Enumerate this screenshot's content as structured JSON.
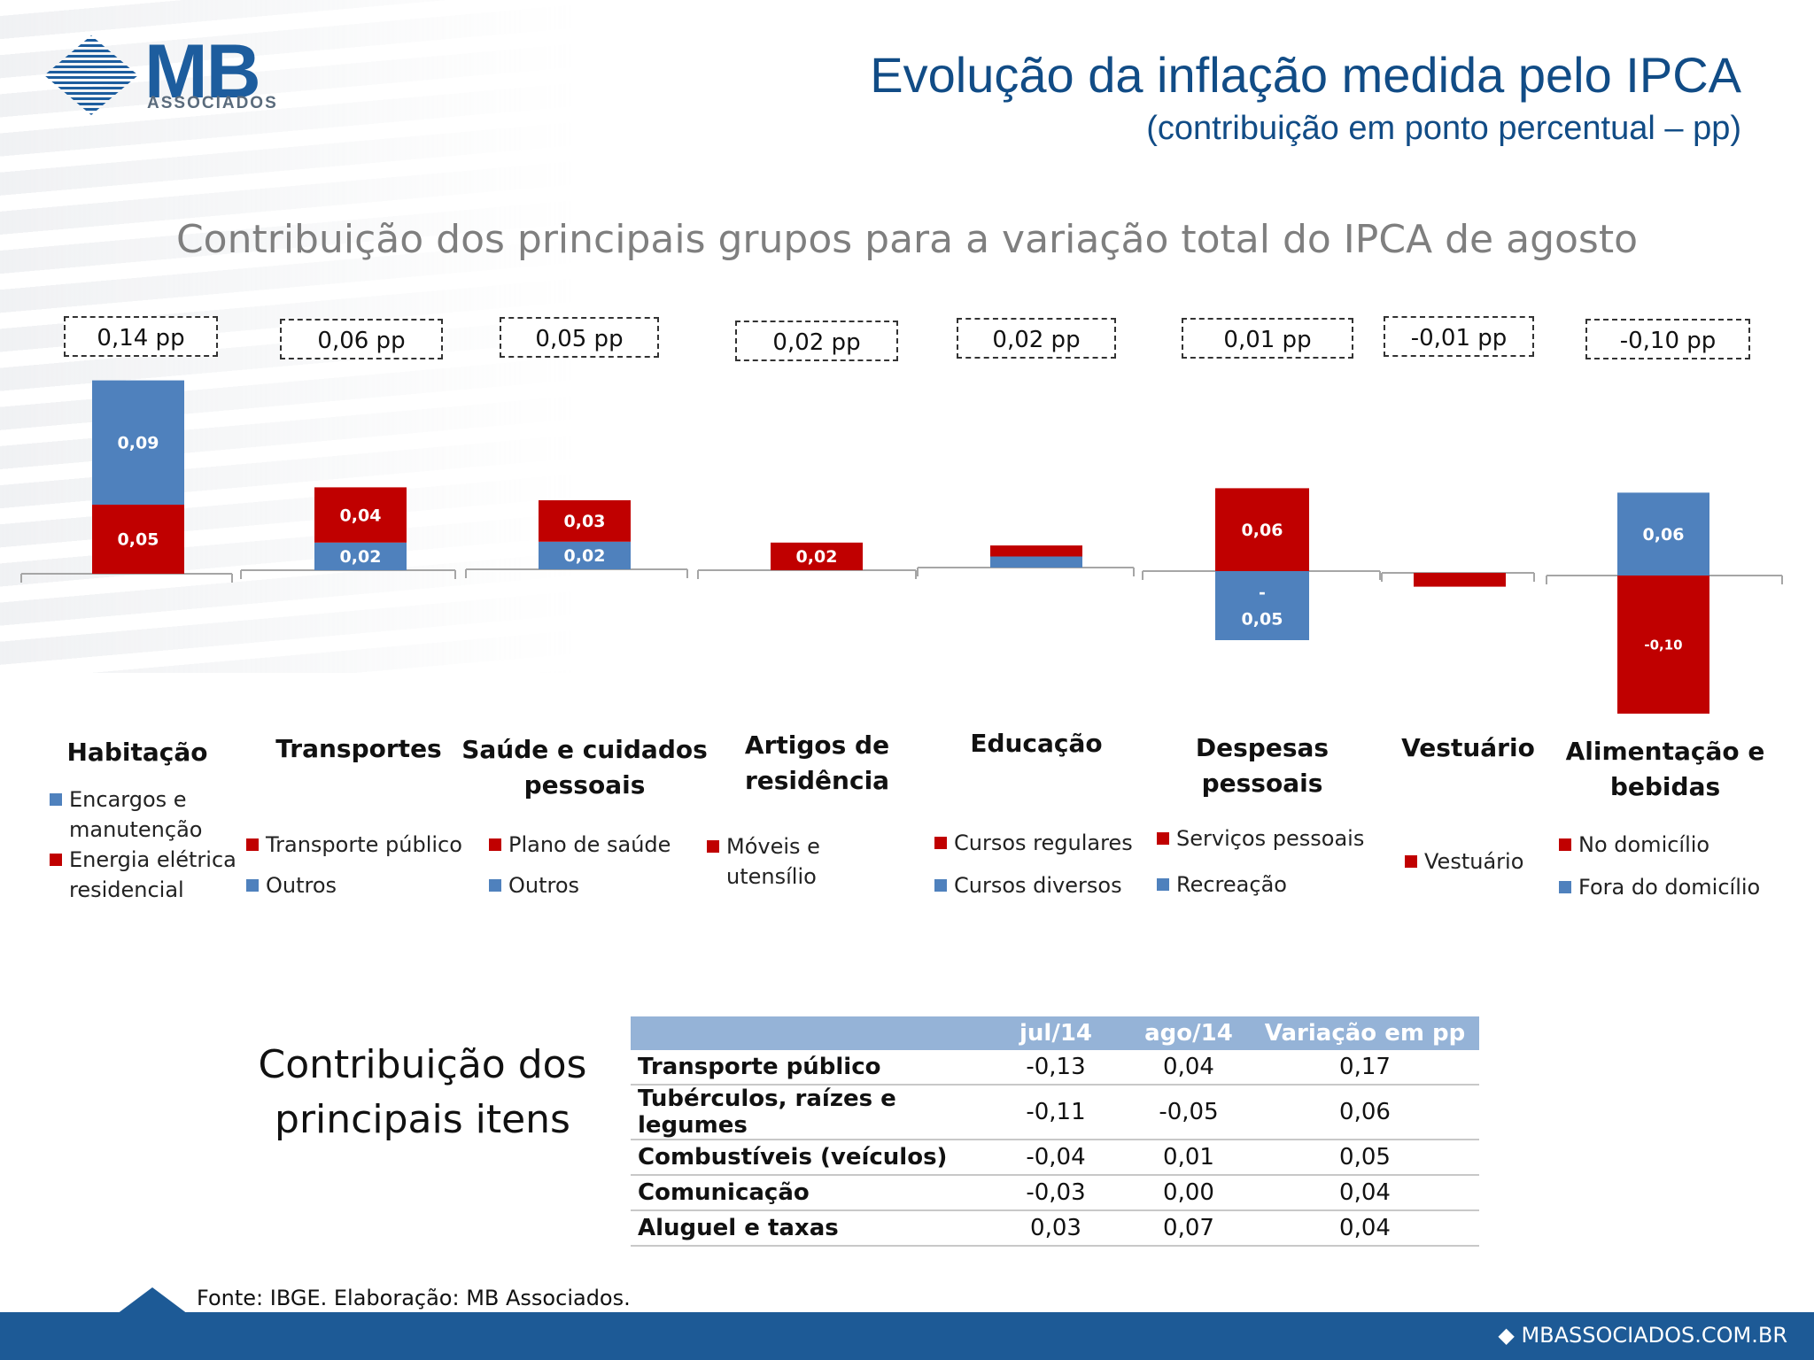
{
  "header": {
    "logo_text": "MB",
    "logo_subtext": "ASSOCIADOS",
    "title": "Evolução da inflação medida pelo IPCA",
    "subtitle": "(contribuição em ponto percentual – pp)"
  },
  "chart_title": "Contribuição dos principais grupos para a variação total do IPCA de agosto",
  "colors": {
    "red": "#c00000",
    "blue": "#4f81bd",
    "header_blue": "#114c86",
    "footer_blue": "#1d5a96",
    "table_header": "#95b3d7"
  },
  "chart_data": {
    "type": "bar",
    "stacked": true,
    "title": "Contribuição dos principais grupos para a variação total do IPCA de agosto",
    "categories": [
      "Habitação",
      "Transportes",
      "Saúde e cuidados pessoais",
      "Artigos de residência",
      "Educação",
      "Despesas pessoais",
      "Vestuário",
      "Alimentação e bebidas"
    ],
    "totals": [
      "0,14 pp",
      "0,06 pp",
      "0,05 pp",
      "0,02 pp",
      "0,02 pp",
      "0,01 pp",
      "-0,01 pp",
      "-0,10 pp"
    ],
    "total_values": [
      0.14,
      0.06,
      0.05,
      0.02,
      0.02,
      0.01,
      -0.01,
      -0.1
    ],
    "groups": [
      {
        "name": "Habitação",
        "segments": [
          {
            "label": "Energia elétrica residencial",
            "color": "red",
            "value": 0.05,
            "data_label": "0,05"
          },
          {
            "label": "Encargos e manutenção",
            "color": "blue",
            "value": 0.09,
            "data_label": "0,09"
          }
        ]
      },
      {
        "name": "Transportes",
        "segments": [
          {
            "label": "Outros",
            "color": "blue",
            "value": 0.02,
            "data_label": "0,02"
          },
          {
            "label": "Transporte público",
            "color": "red",
            "value": 0.04,
            "data_label": "0,04"
          }
        ]
      },
      {
        "name": "Saúde e cuidados pessoais",
        "segments": [
          {
            "label": "Outros",
            "color": "blue",
            "value": 0.02,
            "data_label": "0,02"
          },
          {
            "label": "Plano de saúde",
            "color": "red",
            "value": 0.03,
            "data_label": "0,03"
          }
        ]
      },
      {
        "name": "Artigos de residência",
        "segments": [
          {
            "label": "Móveis e utensílio",
            "color": "red",
            "value": 0.02,
            "data_label": "0,02"
          }
        ]
      },
      {
        "name": "Educação",
        "segments": [
          {
            "label": "Cursos diversos",
            "color": "blue",
            "value": 0.008,
            "data_label": ""
          },
          {
            "label": "Cursos regulares",
            "color": "red",
            "value": 0.008,
            "data_label": ""
          }
        ]
      },
      {
        "name": "Despesas pessoais",
        "segments": [
          {
            "label": "Serviços pessoais",
            "color": "red",
            "value": 0.06,
            "data_label": "0,06"
          },
          {
            "label": "Recreação",
            "color": "blue",
            "value": -0.05,
            "data_label": "-\n0,05"
          }
        ]
      },
      {
        "name": "Vestuário",
        "segments": [
          {
            "label": "Vestuário",
            "color": "red",
            "value": -0.01,
            "data_label": ""
          }
        ]
      },
      {
        "name": "Alimentação e bebidas",
        "segments": [
          {
            "label": "Fora do domicílio",
            "color": "blue",
            "value": 0.06,
            "data_label": "0,06"
          },
          {
            "label": "No domicílio",
            "color": "red",
            "value": -0.1,
            "data_label": "-0,10"
          }
        ]
      }
    ]
  },
  "group_titles": {
    "g0": "Habitação",
    "g1": "Transportes",
    "g2a": "Saúde e cuidados",
    "g2b": "pessoais",
    "g3a": "Artigos de",
    "g3b": "residência",
    "g4": "Educação",
    "g5": "Despesas pessoais",
    "g6": "Vestuário",
    "g7a": "Alimentação e",
    "g7b": "bebidas"
  },
  "legends": {
    "g0": [
      "Encargos e",
      "manutenção",
      "Energia elétrica",
      "residencial"
    ],
    "g1": [
      "Transporte público",
      "Outros"
    ],
    "g2": [
      "Plano de saúde",
      "Outros"
    ],
    "g3": [
      "Móveis e utensílio"
    ],
    "g4": [
      "Cursos regulares",
      "Cursos diversos"
    ],
    "g5": [
      "Serviços pessoais",
      "Recreação"
    ],
    "g6": [
      "Vestuário"
    ],
    "g7": [
      "No domicílio",
      "Fora do domicílio"
    ]
  },
  "table": {
    "caption_line1": "Contribuição dos",
    "caption_line2": "principais itens",
    "headers": [
      "",
      "jul/14",
      "ago/14",
      "Variação em pp"
    ],
    "rows": [
      [
        "Transporte público",
        "-0,13",
        "0,04",
        "0,17"
      ],
      [
        "Tubérculos, raízes e legumes",
        "-0,11",
        "-0,05",
        "0,06"
      ],
      [
        "Combustíveis (veículos)",
        "-0,04",
        "0,01",
        "0,05"
      ],
      [
        "Comunicação",
        "-0,03",
        "0,00",
        "0,04"
      ],
      [
        "Aluguel e taxas",
        "0,03",
        "0,07",
        "0,04"
      ]
    ]
  },
  "source": "Fonte: IBGE. Elaboração: MB Associados.",
  "footer_url": "MBASSOCIADOS.COM.BR"
}
